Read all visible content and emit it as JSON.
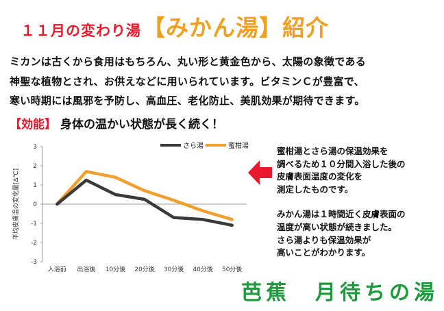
{
  "title": {
    "lead": "１１月の変わり湯",
    "main": "【みかん湯】紹介"
  },
  "intro": {
    "lines": [
      "ミカンは古くから食用はもちろん、丸い形と黄金色から、太陽の象徴である",
      "神聖な植物とされ、お供えなどに用いられています。ビタミンＣが豊富で、",
      "寒い時期には風邪を予防し、高血圧、老化防止、美肌効果が期待できます。"
    ]
  },
  "effect": {
    "tag": "【効能】",
    "text": "身体の温かい状態が長く続く！"
  },
  "colors": {
    "title_red": "#e8192c",
    "title_orange": "#f0a020",
    "sara_series": "#3a3a3a",
    "mikan_series": "#f0a030",
    "arrow": "#e8192c",
    "signature_green": "#1d9a3c"
  },
  "chart_data": {
    "type": "line",
    "categories": [
      "入浴前",
      "出浴後",
      "10分後",
      "20分後",
      "30分後",
      "40分後",
      "50分後"
    ],
    "series": [
      {
        "name": "さら湯",
        "values": [
          0,
          1.25,
          0.5,
          0.25,
          -0.7,
          -0.8,
          -1.1
        ]
      },
      {
        "name": "蜜柑湯",
        "values": [
          0,
          1.7,
          1.4,
          0.7,
          0.2,
          -0.35,
          -0.8
        ]
      }
    ],
    "ylabel": "平均皮膚温の変化量[Δ℃]",
    "yticks": [
      "3",
      "2",
      "1",
      "0",
      "-1",
      "-2",
      "-3"
    ],
    "ylim": [
      -3,
      3
    ],
    "legend": "top-right",
    "grid": false
  },
  "notes": {
    "paragraph1": [
      "蜜柑湯とさら湯の保温効果を",
      "調べるため１０分間入浴した後の",
      "皮膚表面温度の変化を",
      "測定したものです。"
    ],
    "paragraph2": [
      "みかん湯は１時間近く皮膚表面の",
      "温度が高い状態が続きました。",
      "さら湯よりも保温効果が",
      "高いことがわかります。"
    ]
  },
  "signature": "芭蕉　月待ちの湯"
}
